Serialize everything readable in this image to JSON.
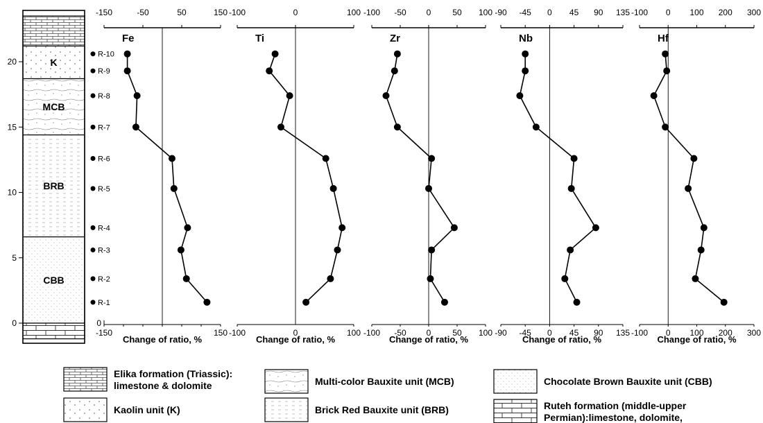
{
  "chart_data": {
    "type": "line",
    "column": {
      "depth_ticks": [
        0,
        5,
        10,
        15,
        20
      ],
      "depth_range": [
        0,
        22.5
      ],
      "units": [
        {
          "label": "",
          "from": 21.2,
          "to": 23.5,
          "pattern": "brick"
        },
        {
          "label": "K",
          "from": 18.7,
          "to": 21.2,
          "pattern": "dots"
        },
        {
          "label": "MCB",
          "from": 14.4,
          "to": 18.7,
          "pattern": "wavy-dots"
        },
        {
          "label": "BRB",
          "from": 6.6,
          "to": 14.4,
          "pattern": "dashes"
        },
        {
          "label": "CBB",
          "from": 0,
          "to": 6.6,
          "pattern": "fine-dots"
        },
        {
          "label": "",
          "from": -1.2,
          "to": 0,
          "pattern": "block"
        }
      ],
      "samples": [
        {
          "id": "R-10",
          "depth": 20.6
        },
        {
          "id": "R-9",
          "depth": 19.3
        },
        {
          "id": "R-8",
          "depth": 17.4
        },
        {
          "id": "R-7",
          "depth": 15.0
        },
        {
          "id": "R-6",
          "depth": 12.6
        },
        {
          "id": "R-5",
          "depth": 10.3
        },
        {
          "id": "R-4",
          "depth": 7.3
        },
        {
          "id": "R-3",
          "depth": 5.6
        },
        {
          "id": "R-2",
          "depth": 3.4
        },
        {
          "id": "R-1",
          "depth": 1.6
        }
      ]
    },
    "panels": [
      {
        "title": "Fe",
        "xlim": [
          -150,
          150
        ],
        "ticks": [
          -150,
          -50,
          50,
          150
        ],
        "bottom_ticks": [
          -150,
          -100,
          -50,
          0,
          50,
          100,
          150
        ],
        "values": [
          -90,
          -90,
          -65,
          -68,
          25,
          30,
          65,
          48,
          62,
          115
        ]
      },
      {
        "title": "Ti",
        "xlim": [
          -100,
          100
        ],
        "ticks": [
          -100,
          0,
          100
        ],
        "bottom_ticks": [
          -100,
          100
        ],
        "values": [
          -35,
          -45,
          -10,
          -25,
          52,
          65,
          80,
          72,
          60,
          18
        ]
      },
      {
        "title": "Zr",
        "xlim": [
          -100,
          100
        ],
        "ticks": [
          -100,
          -50,
          0,
          50,
          100
        ],
        "bottom_ticks": [
          -100,
          -50,
          0,
          50,
          100
        ],
        "values": [
          -55,
          -60,
          -75,
          -55,
          5,
          0,
          45,
          5,
          3,
          28
        ]
      },
      {
        "title": "Nb",
        "xlim": [
          -90,
          135
        ],
        "ticks": [
          -90,
          -45,
          0,
          45,
          90,
          135
        ],
        "bottom_ticks": [
          -90,
          -45,
          0,
          45,
          90,
          135
        ],
        "values": [
          -45,
          -45,
          -55,
          -25,
          45,
          40,
          85,
          38,
          28,
          50
        ]
      },
      {
        "title": "Hf",
        "xlim": [
          -100,
          300
        ],
        "ticks": [
          -100,
          0,
          100,
          200,
          300
        ],
        "bottom_ticks": [
          -100,
          0,
          100,
          200,
          300
        ],
        "values": [
          -10,
          -5,
          -50,
          -10,
          90,
          70,
          125,
          115,
          95,
          195
        ]
      }
    ],
    "xlabel": "Change of ratio, %"
  },
  "legend": [
    {
      "pattern": "brick",
      "lines": [
        "Elika formation (Triassic):",
        "limestone & dolomite"
      ]
    },
    {
      "pattern": "wavy-dots",
      "lines": [
        "Multi-color Bauxite unit (MCB)"
      ]
    },
    {
      "pattern": "fine-dots",
      "lines": [
        "Chocolate Brown Bauxite unit (CBB)"
      ]
    },
    {
      "pattern": "dots",
      "lines": [
        "Kaolin unit (K)"
      ]
    },
    {
      "pattern": "dashes",
      "lines": [
        "Brick Red Bauxite unit (BRB)"
      ]
    },
    {
      "pattern": "block",
      "lines": [
        "Ruteh formation (middle-upper",
        "Permian):limestone, dolomite,"
      ]
    }
  ]
}
